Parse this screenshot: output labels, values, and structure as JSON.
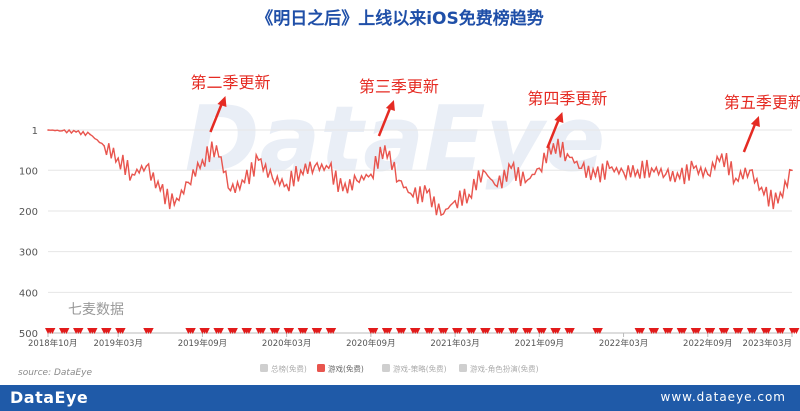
{
  "chart_data": {
    "type": "line",
    "title": "《明日之后》上线以来iOS免费榜趋势",
    "y_ticks": [
      "1",
      "100",
      "200",
      "300",
      "400",
      "500"
    ],
    "ylim": [
      1,
      500
    ],
    "y_reversed": true,
    "x_ticks": [
      "2018年10月",
      "2019年03月",
      "2019年09月",
      "2020年03月",
      "2020年09月",
      "2021年03月",
      "2021年09月",
      "2022年03月",
      "2022年09月",
      "2023年03月"
    ],
    "legend": [
      "总榜(免费)",
      "游戏(免费)",
      "游戏-策略(免费)",
      "游戏-角色扮演(免费)"
    ],
    "legend_active": 1,
    "legend_placement": "bottom",
    "watermark": "DataEye",
    "corner_label": "七麦数据",
    "annotations": [
      {
        "text": "第二季更新",
        "x": "2019年10月"
      },
      {
        "text": "第三季更新",
        "x": "2020年10月"
      },
      {
        "text": "第四季更新",
        "x": "2021年10月"
      },
      {
        "text": "第五季更新",
        "x": "2022年12月"
      }
    ],
    "series": [
      {
        "name": "游戏(免费)",
        "color": "#e8554e",
        "x": [
          "2018年10月",
          "2018年11月",
          "2018年12月",
          "2019年01月",
          "2019年02月",
          "2019年03月",
          "2019年04月",
          "2019年05月",
          "2019年06月",
          "2019年07月",
          "2019年08月",
          "2019年09月",
          "2019年10月",
          "2019年11月",
          "2019年12月",
          "2020年01月",
          "2020年02月",
          "2020年03月",
          "2020年04月",
          "2020年05月",
          "2020年06月",
          "2020年07月",
          "2020年08月",
          "2020年09月",
          "2020年10月",
          "2020年11月",
          "2020年12月",
          "2021年01月",
          "2021年02月",
          "2021年03月",
          "2021年04月",
          "2021年05月",
          "2021年06月",
          "2021年07月",
          "2021年08月",
          "2021年09月",
          "2021年10月",
          "2021年11月",
          "2021年12月",
          "2022年01月",
          "2022年02月",
          "2022年03月",
          "2022年04月",
          "2022年05月",
          "2022年06月",
          "2022年07月",
          "2022年08月",
          "2022年09月",
          "2022年10月",
          "2022年11月",
          "2022年12月",
          "2023年01月",
          "2023年02月",
          "2023年03月"
        ],
        "values": [
          1,
          3,
          6,
          12,
          40,
          70,
          110,
          90,
          150,
          185,
          130,
          75,
          40,
          150,
          130,
          75,
          120,
          135,
          100,
          90,
          95,
          150,
          125,
          110,
          40,
          125,
          165,
          155,
          210,
          175,
          160,
          100,
          140,
          95,
          130,
          95,
          35,
          60,
          95,
          115,
          95,
          105,
          100,
          95,
          110,
          120,
          95,
          110,
          60,
          120,
          100,
          160,
          180,
          100
        ]
      }
    ],
    "bottom_markers": {
      "color": "#e21b1b",
      "x": [
        "2018年10月",
        "2018年11月",
        "2018年12月",
        "2019年01月",
        "2019年02月",
        "2019年03月",
        "2019年05月",
        "2019年08月",
        "2019年09月",
        "2019年10月",
        "2019年11月",
        "2019年12月",
        "2020年01月",
        "2020年02月",
        "2020年03月",
        "2020年04月",
        "2020年05月",
        "2020年06月",
        "2020年09月",
        "2020年10月",
        "2020年11月",
        "2020年12月",
        "2021年01月",
        "2021年02月",
        "2021年03月",
        "2021年04月",
        "2021年05月",
        "2021年06月",
        "2021年07月",
        "2021年08月",
        "2021年09月",
        "2021年10月",
        "2021年11月",
        "2022年01月",
        "2022年04月",
        "2022年05月",
        "2022年06月",
        "2022年07月",
        "2022年08月",
        "2022年09月",
        "2022年10月",
        "2022年11月",
        "2022年12月",
        "2023年01月",
        "2023年02月",
        "2023年03月"
      ]
    }
  },
  "source_text": "source: DataEye",
  "footer": {
    "brand": "DataEye",
    "site": "www.dataeye.com"
  }
}
